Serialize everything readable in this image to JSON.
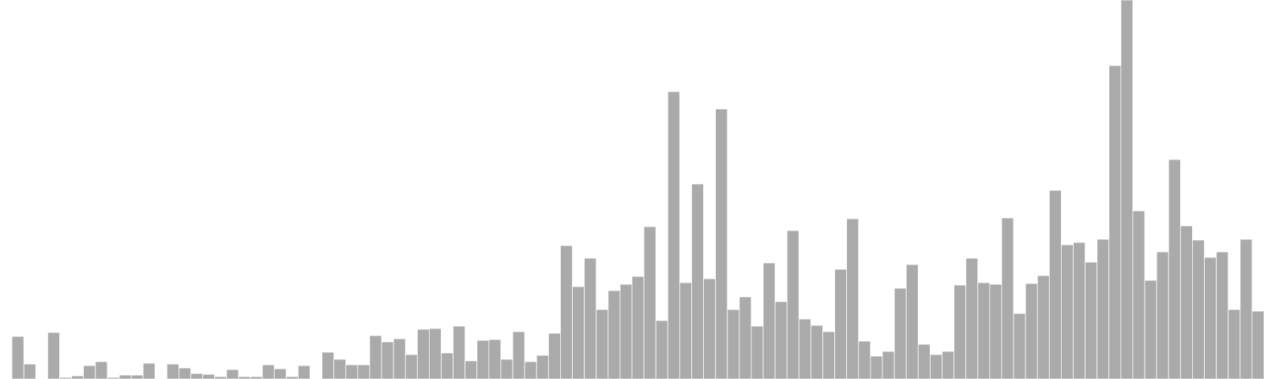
{
  "chart_data": {
    "type": "bar",
    "title": "",
    "xlabel": "",
    "ylabel": "",
    "grid": false,
    "legend": "none",
    "ylim": [
      0,
      480
    ],
    "bar_color": "#aaaaaa",
    "bar_edge_color": "#ffffff",
    "values": [
      0,
      54,
      19,
      0,
      59,
      2,
      4,
      17,
      22,
      2,
      5,
      5,
      20,
      0,
      19,
      14,
      7,
      6,
      3,
      12,
      3,
      3,
      18,
      13,
      3,
      17,
      0,
      34,
      25,
      18,
      18,
      55,
      47,
      51,
      31,
      63,
      64,
      33,
      67,
      23,
      49,
      50,
      25,
      60,
      22,
      30,
      58,
      169,
      117,
      153,
      88,
      112,
      120,
      130,
      193,
      74,
      364,
      122,
      247,
      127,
      342,
      88,
      104,
      67,
      147,
      98,
      188,
      76,
      68,
      60,
      139,
      203,
      48,
      29,
      35,
      115,
      145,
      44,
      31,
      35,
      119,
      153,
      122,
      120,
      204,
      83,
      121,
      131,
      239,
      170,
      173,
      148,
      177,
      397,
      480,
      213,
      125,
      161,
      278,
      194,
      176,
      154,
      161,
      88,
      177,
      86
    ]
  }
}
